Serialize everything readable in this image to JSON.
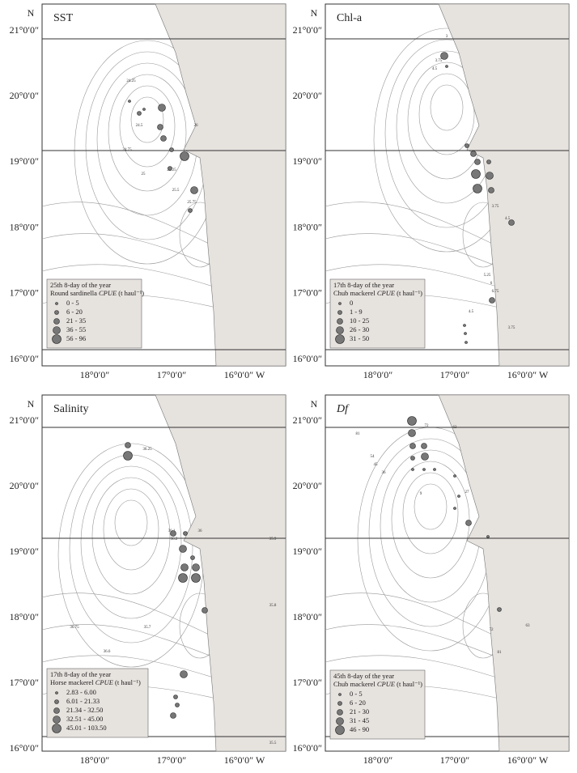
{
  "shared": {
    "north": "N",
    "lat_labels": [
      "21°0′0″",
      "20°0′0″",
      "19°0′0″",
      "18°0′0″",
      "17°0′0″",
      "16°0′0″"
    ],
    "lon_labels": [
      "18°0′0″",
      "17°0′0″",
      "16°0′0″ W"
    ]
  },
  "panels": [
    {
      "title": "SST",
      "title_italic": false,
      "legend": {
        "period": "25th 8-day of the year",
        "species": "Round sardinella",
        "metric": "CPUE",
        "unit": "(t haul⁻¹)",
        "classes": [
          "0 - 5",
          "6 - 20",
          "21 - 35",
          "36 - 55",
          "56 - 96"
        ]
      },
      "contour_labels": [
        "24.25",
        "24.5",
        "24.75",
        "25",
        "25.25",
        "25.5",
        "25.75",
        "26"
      ]
    },
    {
      "title": "Chl-a",
      "title_italic": false,
      "legend": {
        "period": "17th 8-day of the year",
        "species": "Chub mackerel",
        "metric": "CPUE",
        "unit": "(t haul⁻¹)",
        "classes": [
          "0",
          "1 - 9",
          "10 - 25",
          "26 - 30",
          "31 - 50"
        ]
      },
      "contour_labels": [
        "3",
        "3.75",
        "4.5",
        "3.75",
        "4.5",
        "5.25",
        "6",
        "6.75",
        "4.5",
        "3.75"
      ]
    },
    {
      "title": "Salinity",
      "title_italic": false,
      "legend": {
        "period": "17th 8-day of the year",
        "species": "Horse mackerel",
        "metric": "CPUE",
        "unit": "(t haul⁻¹)",
        "classes": [
          "2.83 - 6.00",
          "6.01 - 21.33",
          "21.34 - 32.50",
          "32.51 - 45.00",
          "45.01 - 103.50"
        ]
      },
      "contour_labels": [
        "36.25",
        "36.1",
        "36.2",
        "36",
        "35.9",
        "35.8",
        "36.75",
        "35.7",
        "36.6",
        "35.5"
      ]
    },
    {
      "title": "Df",
      "title_italic": true,
      "legend": {
        "period": "45th 8-day of the year",
        "species": "Chub mackerel",
        "metric": "CPUE",
        "unit": "(t haul⁻¹)",
        "classes": [
          "0 - 5",
          "6 - 20",
          "21 - 30",
          "31 - 45",
          "46 - 90"
        ]
      },
      "contour_labels": [
        "81",
        "72",
        "63",
        "54",
        "45",
        "36",
        "27",
        "9",
        "63",
        "72",
        "81"
      ]
    }
  ]
}
